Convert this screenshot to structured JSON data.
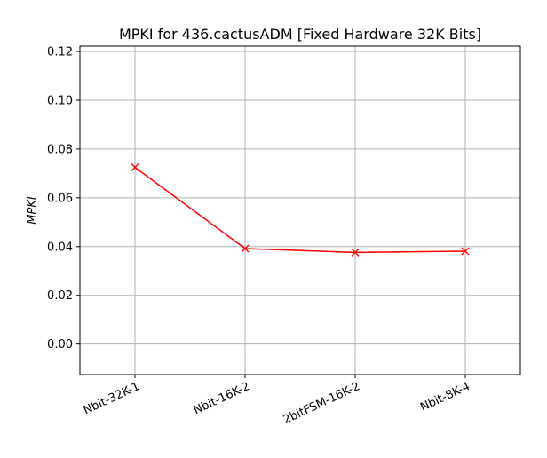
{
  "chart_data": {
    "type": "line",
    "title": "MPKI for 436.cactusADM [Fixed Hardware 32K Bits]",
    "xlabel": "",
    "ylabel": "MPKI",
    "categories": [
      "Nbit-32K-1",
      "Nbit-16K-2",
      "2bitFSM-16K-2",
      "Nbit-8K-4"
    ],
    "series": [
      {
        "values": [
          0.0725,
          0.0392,
          0.0376,
          0.0381
        ],
        "color": "#ff0000",
        "marker": "x"
      }
    ],
    "ylim": [
      -0.0125,
      0.1222
    ],
    "yticks": [
      "0.00",
      "0.02",
      "0.04",
      "0.06",
      "0.08",
      "0.10",
      "0.12"
    ],
    "grid": true
  }
}
